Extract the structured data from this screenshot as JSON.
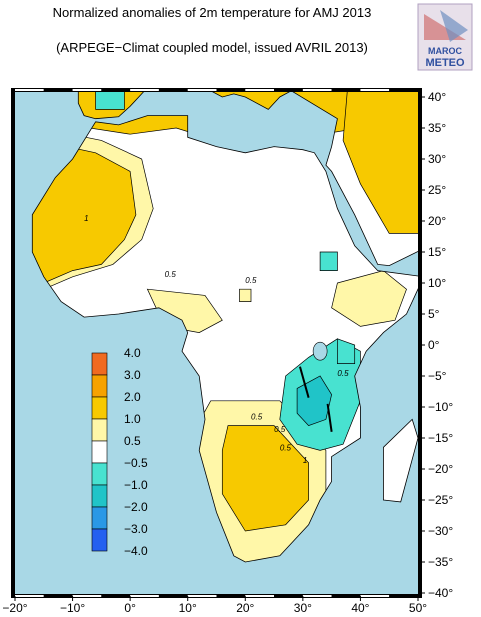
{
  "title": {
    "line1": "Normalized anomalies of 2m temperature for AMJ 2013",
    "line2": "(ARPEGE−Climat coupled model, issued AVRIL 2013)"
  },
  "logo": {
    "line1": "MAROC",
    "line2": "METEO"
  },
  "lat_labels": [
    "40°",
    "35°",
    "30°",
    "25°",
    "20°",
    "15°",
    "10°",
    "5°",
    "0°",
    "−5°",
    "−10°",
    "−15°",
    "−20°",
    "−25°",
    "−30°",
    "−35°",
    "−40°"
  ],
  "lon_labels": [
    "−20°",
    "−10°",
    "0°",
    "10°",
    "20°",
    "30°",
    "40°",
    "50°"
  ],
  "colorbar_labels": [
    "4.0",
    "3.0",
    "2.0",
    "1.0",
    "0.5",
    "−0.5",
    "−1.0",
    "−2.0",
    "−3.0",
    "−4.0"
  ],
  "contour_labels": [
    "0.5",
    "1",
    "0.5",
    "0.5",
    "0.5",
    "0.5",
    "1",
    "0.5"
  ]
}
